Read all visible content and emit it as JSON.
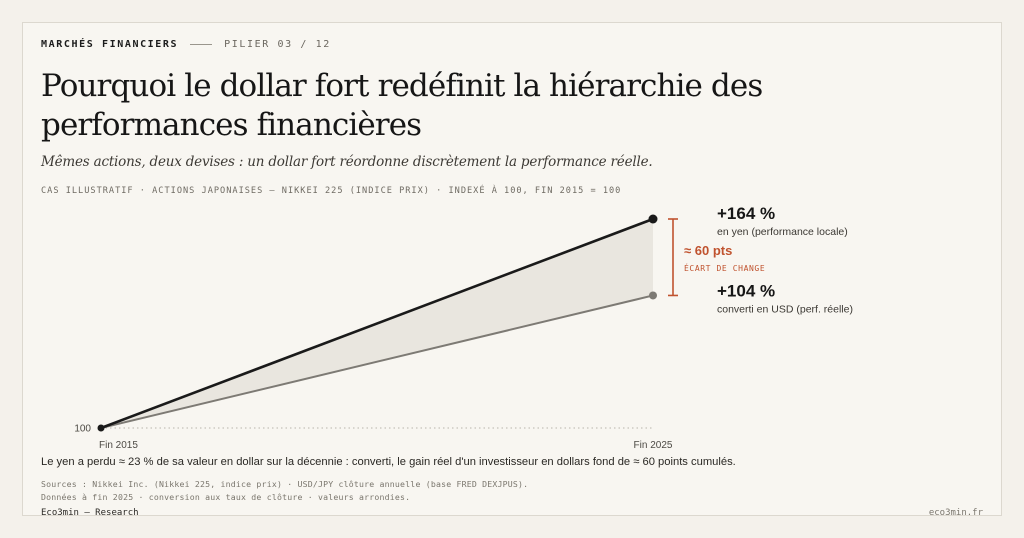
{
  "header": {
    "kicker": "MARCHÉS FINANCIERS",
    "pillar": "PILIER 03 / 12",
    "title": "Pourquoi le dollar fort redéfinit la hiérarchie des performances financières",
    "subtitle": "Mêmes actions, deux devises : un dollar fort réordonne discrètement la performance réelle.",
    "caseline": "CAS ILLUSTRATIF · ACTIONS JAPONAISES — NIKKEI 225 (INDICE PRIX) · INDEXÉ À 100, FIN 2015 = 100"
  },
  "chart_data": {
    "type": "line",
    "x": [
      "Fin 2015",
      "Fin 2025"
    ],
    "series": [
      {
        "values": [
          100,
          264
        ],
        "color": "#1a1a1a"
      },
      {
        "values": [
          100,
          204
        ],
        "color": "#7d7a74"
      }
    ],
    "ytick": 100,
    "ylim": [
      100,
      264
    ],
    "end_labels": [
      {
        "value": "+164 %",
        "note": "en yen (performance locale)"
      },
      {
        "value": "+104 %",
        "note": "converti en USD (perf. réelle)"
      }
    ],
    "gap": {
      "value": "≈ 60 pts",
      "note": "ÉCART DE CHANGE",
      "color": "#c0532f"
    },
    "fill_color": "#e9e6df"
  },
  "takeaway": "Le yen a perdu ≈ 23 % de sa valeur en dollar sur la décennie : converti, le gain réel d'un investisseur en dollars fond de ≈ 60 points cumulés.",
  "sources": [
    "Sources : Nikkei Inc. (Nikkei 225, indice prix) · USD/JPY clôture annuelle (base FRED DEXJPUS).",
    "Données à fin 2025 · conversion aux taux de clôture · valeurs arrondies."
  ],
  "footer": {
    "left": "Eco3min — Research",
    "right": "eco3min.fr"
  }
}
